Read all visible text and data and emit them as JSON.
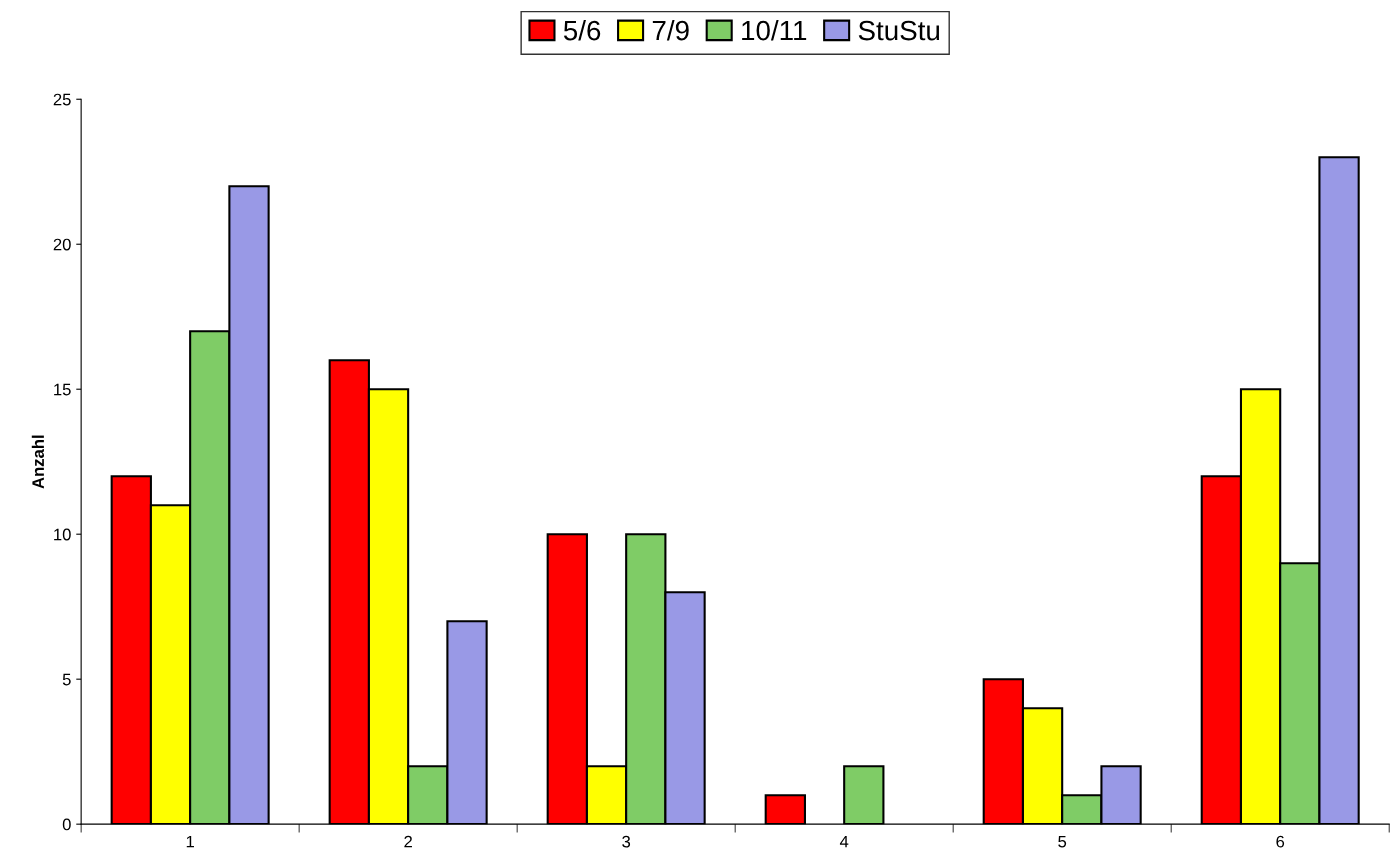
{
  "chart_data": {
    "type": "bar",
    "ylabel": "Anzahl",
    "categories": [
      "1",
      "2",
      "3",
      "4",
      "5",
      "6"
    ],
    "series": [
      {
        "name": "5/6",
        "color": "#ff0000",
        "values": [
          12,
          16,
          10,
          1,
          5,
          12
        ]
      },
      {
        "name": "7/9",
        "color": "#ffff00",
        "values": [
          11,
          15,
          2,
          0,
          4,
          15
        ]
      },
      {
        "name": "10/11",
        "color": "#7fcc66",
        "values": [
          17,
          2,
          10,
          2,
          1,
          9
        ]
      },
      {
        "name": "StuStu",
        "color": "#9999e6",
        "values": [
          22,
          7,
          8,
          0,
          2,
          23
        ]
      }
    ],
    "ylim": [
      0,
      25
    ],
    "yticks": [
      0,
      5,
      10,
      15,
      20,
      25
    ],
    "grid": false,
    "legend": "top"
  }
}
